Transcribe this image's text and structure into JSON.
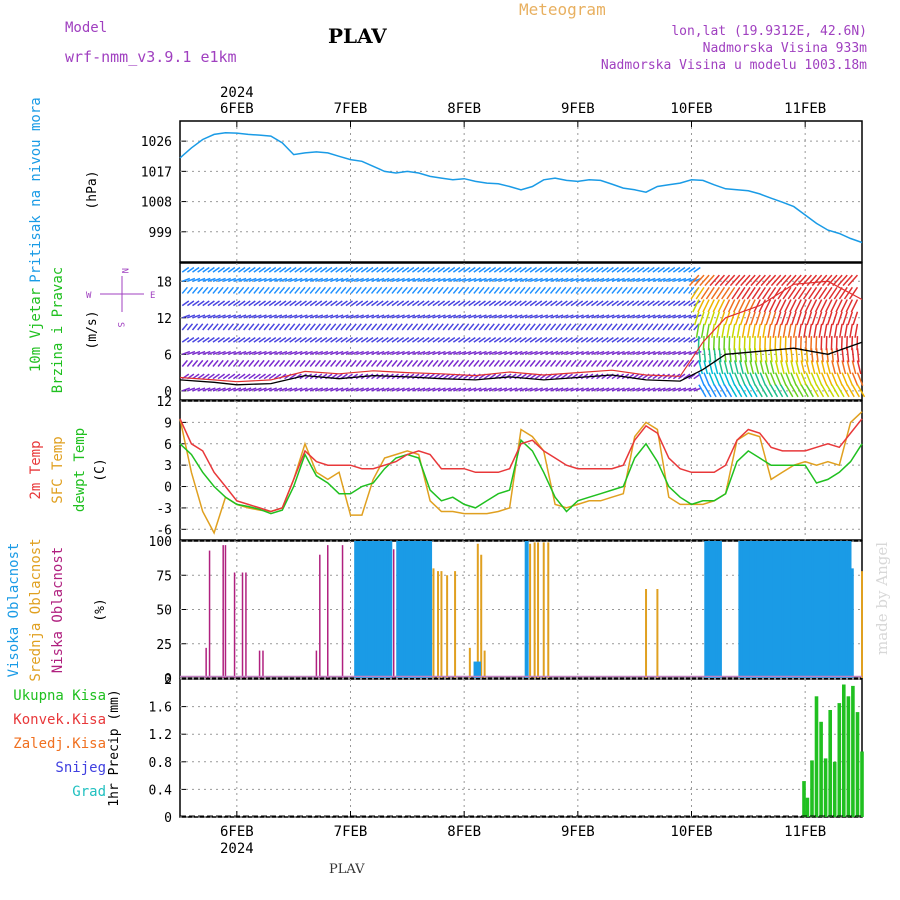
{
  "header": {
    "model_label": "Model",
    "model_name": "wrf-nmm_v3.9.1 e1km",
    "station": "PLAV",
    "meteogram": "Meteogram",
    "lonlat": "lon,lat (19.9312E, 42.6N)",
    "elevation": "Nadmorska Visina 933m",
    "model_elevation": "Nadmorska Visina u modelu 1003.18m",
    "footer_station": "PLAV",
    "watermark": "made by Angel"
  },
  "colors": {
    "pressure": "#1a9be6",
    "temp2m": "#e8383a",
    "sfc_temp": "#e0a020",
    "dewpt": "#20c020",
    "high_cloud": "#1a9be6",
    "mid_cloud": "#e0a020",
    "low_cloud": "#b0207f",
    "precip_total": "#20c020",
    "precip_conv": "#e8383a",
    "precip_frozen": "#f07020",
    "snow": "#4040e0",
    "hail": "#20c0c0",
    "label_purple": "#a040c0",
    "label_orange": "#e8b060"
  },
  "chart_data": [
    {
      "type": "line",
      "panel": "pressure",
      "ylabels": [
        "Pritisak na nivou mora",
        "(hPa)"
      ],
      "yticks": [
        "999",
        "1008",
        "1017",
        "1026"
      ],
      "ylim": [
        990,
        1032
      ],
      "x_unit": "days since 2024-02-06 00:00",
      "xlim": [
        -0.5,
        5.5
      ],
      "xticks": [
        "6FEB",
        "7FEB",
        "8FEB",
        "9FEB",
        "10FEB",
        "11FEB"
      ],
      "year_label": "2024",
      "grid": true,
      "series": [
        {
          "name": "Pritisak na nivou mora",
          "x": [
            -0.5,
            -0.4,
            -0.3,
            -0.2,
            -0.1,
            0,
            0.1,
            0.2,
            0.3,
            0.4,
            0.5,
            0.6,
            0.7,
            0.8,
            0.9,
            1.0,
            1.1,
            1.2,
            1.3,
            1.4,
            1.5,
            1.6,
            1.7,
            1.8,
            1.9,
            2.0,
            2.1,
            2.2,
            2.3,
            2.4,
            2.5,
            2.6,
            2.7,
            2.8,
            2.9,
            3.0,
            3.1,
            3.2,
            3.3,
            3.4,
            3.5,
            3.6,
            3.7,
            3.8,
            3.9,
            4.0,
            4.1,
            4.2,
            4.3,
            4.4,
            4.5,
            4.6,
            4.7,
            4.8,
            4.9,
            5.0,
            5.1,
            5.2,
            5.3,
            5.4,
            5.5
          ],
          "values": [
            1021,
            1024,
            1026.5,
            1028,
            1028.5,
            1028.4,
            1028,
            1027.8,
            1027.5,
            1025.5,
            1022,
            1022.5,
            1022.8,
            1022.5,
            1021.5,
            1020.5,
            1020,
            1018.5,
            1017,
            1016.5,
            1017,
            1016.5,
            1015.5,
            1015,
            1014.5,
            1014.8,
            1014,
            1013.5,
            1013.3,
            1012.5,
            1011.5,
            1012.5,
            1014.5,
            1015,
            1014.3,
            1014,
            1014.5,
            1014.3,
            1013.2,
            1012,
            1011.5,
            1010.8,
            1012.5,
            1013,
            1013.5,
            1014.5,
            1014.3,
            1013,
            1011.8,
            1011.5,
            1011.2,
            1010.3,
            1009,
            1007.8,
            1006.5,
            1004,
            1001.5,
            999.5,
            998.5,
            997,
            995.8
          ]
        }
      ]
    },
    {
      "type": "line",
      "panel": "wind",
      "ylabels": [
        "10m Vjetar",
        "Brzina i Pravac",
        "(m/s)"
      ],
      "compass": {
        "n": "N",
        "s": "S",
        "e": "E",
        "w": "W"
      },
      "yticks": [
        "0",
        "6",
        "12",
        "18"
      ],
      "ylim": [
        -1.5,
        21
      ],
      "x_unit": "days since 2024-02-06 00:00",
      "xlim": [
        -0.5,
        5.5
      ],
      "grid": true,
      "series": [
        {
          "name": "wind speed",
          "x": [
            -0.5,
            -0.2,
            0,
            0.3,
            0.6,
            0.9,
            1.2,
            1.5,
            1.8,
            2.1,
            2.4,
            2.7,
            3.0,
            3.3,
            3.6,
            3.9,
            4.1,
            4.3,
            4.6,
            4.9,
            5.2,
            5.5
          ],
          "values": [
            1.8,
            1.4,
            1.0,
            1.2,
            2.5,
            2.0,
            2.5,
            2.3,
            2.0,
            1.8,
            2.3,
            1.8,
            2.2,
            2.6,
            1.8,
            1.6,
            3.5,
            6.0,
            6.5,
            7.0,
            6.0,
            8.0
          ]
        },
        {
          "name": "gust",
          "x": [
            -0.5,
            -0.2,
            0,
            0.3,
            0.6,
            0.9,
            1.2,
            1.5,
            1.8,
            2.1,
            2.4,
            2.7,
            3.0,
            3.3,
            3.6,
            3.9,
            4.1,
            4.3,
            4.6,
            4.9,
            5.2,
            5.5
          ],
          "values": [
            2.2,
            1.8,
            1.5,
            1.8,
            3.2,
            2.8,
            3.3,
            3.0,
            2.8,
            2.5,
            3.1,
            2.6,
            3.0,
            3.4,
            2.6,
            2.4,
            8.0,
            12.0,
            14.0,
            17.5,
            18.0,
            15.0
          ]
        }
      ]
    },
    {
      "type": "line",
      "panel": "temperature",
      "ylabels": [
        "2m Temp",
        "SFC Temp",
        "dewpt Temp",
        "(C)"
      ],
      "yticks": [
        "-6",
        "-3",
        "0",
        "3",
        "6",
        "9",
        "12"
      ],
      "ylim": [
        -7.5,
        12
      ],
      "x_unit": "days since 2024-02-06 00:00",
      "xlim": [
        -0.5,
        5.5
      ],
      "grid": true,
      "series": [
        {
          "name": "2m Temp",
          "x": [
            -0.5,
            -0.4,
            -0.3,
            -0.2,
            -0.1,
            0,
            0.1,
            0.2,
            0.3,
            0.4,
            0.5,
            0.6,
            0.7,
            0.8,
            0.9,
            1.0,
            1.1,
            1.2,
            1.3,
            1.4,
            1.5,
            1.6,
            1.7,
            1.8,
            1.9,
            2.0,
            2.1,
            2.2,
            2.3,
            2.4,
            2.5,
            2.6,
            2.7,
            2.8,
            2.9,
            3.0,
            3.1,
            3.2,
            3.3,
            3.4,
            3.5,
            3.6,
            3.7,
            3.8,
            3.9,
            4.0,
            4.1,
            4.2,
            4.3,
            4.4,
            4.5,
            4.6,
            4.7,
            4.8,
            4.9,
            5.0,
            5.1,
            5.2,
            5.3,
            5.4,
            5.5
          ],
          "values": [
            9.5,
            6,
            5,
            2,
            0,
            -2,
            -2.5,
            -3,
            -3.5,
            -3,
            1,
            5,
            3.5,
            3,
            3,
            3,
            2.5,
            2.5,
            3,
            3.5,
            4.5,
            5,
            4.5,
            2.5,
            2.5,
            2.5,
            2,
            2,
            2,
            2.5,
            6,
            6.5,
            5,
            4,
            3,
            2.5,
            2.5,
            2.5,
            2.5,
            3,
            6.5,
            8.5,
            7.5,
            4,
            2.5,
            2,
            2,
            2,
            3,
            6.5,
            8,
            7.5,
            5.5,
            5,
            5,
            5,
            5.5,
            6,
            5.5,
            7.5,
            9.5
          ]
        },
        {
          "name": "SFC Temp",
          "x": [
            -0.5,
            -0.4,
            -0.3,
            -0.2,
            -0.1,
            0,
            0.1,
            0.2,
            0.3,
            0.4,
            0.5,
            0.6,
            0.7,
            0.8,
            0.9,
            1.0,
            1.1,
            1.2,
            1.3,
            1.4,
            1.5,
            1.6,
            1.7,
            1.8,
            1.9,
            2.0,
            2.1,
            2.2,
            2.3,
            2.4,
            2.5,
            2.6,
            2.7,
            2.8,
            2.9,
            3.0,
            3.1,
            3.2,
            3.3,
            3.4,
            3.5,
            3.6,
            3.7,
            3.8,
            3.9,
            4.0,
            4.1,
            4.2,
            4.3,
            4.4,
            4.5,
            4.6,
            4.7,
            4.8,
            4.9,
            5.0,
            5.1,
            5.2,
            5.3,
            5.4,
            5.5
          ],
          "values": [
            9.5,
            2,
            -3.5,
            -6.5,
            -1.5,
            -2.5,
            -3,
            -3.3,
            -3.5,
            -3,
            1,
            6,
            2,
            1,
            2,
            -4,
            -4,
            1,
            4,
            4.5,
            5,
            4.5,
            -2,
            -3.5,
            -3.5,
            -3.8,
            -3.8,
            -3.8,
            -3.5,
            -3,
            8,
            7,
            5,
            -2.5,
            -3,
            -2.5,
            -2,
            -2,
            -1.5,
            -1,
            7,
            9,
            8,
            -1.5,
            -2.5,
            -2.5,
            -2.5,
            -2,
            -1,
            6.5,
            7.5,
            7,
            1,
            2,
            3,
            3.5,
            3,
            3.5,
            3,
            9,
            10.5
          ]
        },
        {
          "name": "dewpt Temp",
          "x": [
            -0.5,
            -0.4,
            -0.3,
            -0.2,
            -0.1,
            0,
            0.1,
            0.2,
            0.3,
            0.4,
            0.5,
            0.6,
            0.7,
            0.8,
            0.9,
            1.0,
            1.1,
            1.2,
            1.3,
            1.4,
            1.5,
            1.6,
            1.7,
            1.8,
            1.9,
            2.0,
            2.1,
            2.2,
            2.3,
            2.4,
            2.5,
            2.6,
            2.7,
            2.8,
            2.9,
            3.0,
            3.1,
            3.2,
            3.3,
            3.4,
            3.5,
            3.6,
            3.7,
            3.8,
            3.9,
            4.0,
            4.1,
            4.2,
            4.3,
            4.4,
            4.5,
            4.6,
            4.7,
            4.8,
            4.9,
            5.0,
            5.1,
            5.2,
            5.3,
            5.4,
            5.5
          ],
          "values": [
            6,
            4.5,
            2,
            0,
            -1.5,
            -2.5,
            -2.8,
            -3.2,
            -3.8,
            -3.3,
            0,
            4.5,
            1.5,
            0.5,
            -1,
            -1,
            0,
            0.5,
            2.5,
            4,
            4.5,
            4,
            -0.5,
            -2,
            -1.5,
            -2.5,
            -3,
            -2,
            -1,
            -0.5,
            6.5,
            5,
            2,
            -1.5,
            -3.5,
            -2,
            -1.5,
            -1,
            -0.5,
            0,
            4,
            6,
            3.5,
            0,
            -1.5,
            -2.5,
            -2,
            -2,
            -1,
            3.5,
            5,
            4,
            3,
            3,
            3,
            3,
            0.5,
            1,
            2,
            3.5,
            6
          ]
        }
      ]
    },
    {
      "type": "bar",
      "panel": "clouds",
      "ylabels": [
        "Visoka Oblacnost",
        "Srednja Oblacnost",
        "Niska Oblacnost",
        "(%)"
      ],
      "yticks": [
        "0",
        "25",
        "50",
        "75",
        "100"
      ],
      "ylim": [
        0,
        100
      ],
      "x_unit": "days since 2024-02-06 00:00",
      "xlim": [
        -0.5,
        5.5
      ],
      "grid": true,
      "series": [
        {
          "name": "Niska Oblacnost",
          "x": [
            -0.27,
            -0.24,
            -0.12,
            -0.1,
            -0.02,
            0.05,
            0.08,
            0.2,
            0.23,
            0.7,
            0.73,
            0.8,
            0.93,
            1.38,
            1.45,
            1.5,
            1.55,
            5.4
          ],
          "values": [
            22,
            93,
            97,
            97,
            77,
            77,
            77,
            20,
            20,
            20,
            90,
            97,
            97,
            94,
            95,
            97,
            97,
            45
          ]
        },
        {
          "name": "Srednja Oblacnost",
          "x": [
            1.73,
            1.77,
            1.8,
            1.85,
            1.92,
            2.05,
            2.12,
            2.15,
            2.18,
            2.58,
            2.62,
            2.65,
            2.7,
            2.74,
            3.6,
            3.7,
            4.65,
            4.7,
            5.5
          ],
          "values": [
            80,
            78,
            78,
            75,
            78,
            22,
            98,
            90,
            20,
            98,
            99,
            99,
            99,
            99,
            65,
            65,
            97,
            97,
            78
          ]
        },
        {
          "name": "Visoka Oblacnost",
          "x": [
            1.05,
            1.07,
            1.09,
            1.11,
            1.13,
            1.15,
            1.17,
            1.19,
            1.21,
            1.23,
            1.25,
            1.27,
            1.29,
            1.31,
            1.33,
            1.35,
            1.42,
            1.44,
            1.46,
            1.48,
            1.5,
            1.52,
            1.54,
            1.56,
            1.58,
            1.6,
            1.62,
            1.64,
            1.66,
            1.68,
            1.7,
            2.1,
            2.13,
            2.55,
            4.13,
            4.15,
            4.17,
            4.19,
            4.21,
            4.23,
            4.25,
            4.43,
            4.45,
            4.47,
            4.49,
            4.51,
            4.53,
            4.55,
            4.57,
            4.59,
            4.61,
            4.63,
            4.65,
            4.67,
            4.69,
            4.71,
            4.73,
            4.75,
            4.77,
            4.79,
            4.81,
            4.83,
            4.85,
            4.87,
            4.89,
            4.91,
            4.93,
            4.95,
            4.97,
            4.99,
            5.01,
            5.03,
            5.05,
            5.07,
            5.09,
            5.11,
            5.13,
            5.15,
            5.17,
            5.19,
            5.21,
            5.23,
            5.25,
            5.27,
            5.29,
            5.31,
            5.33,
            5.35,
            5.37,
            5.39,
            5.41
          ],
          "values": [
            100,
            100,
            100,
            100,
            100,
            100,
            100,
            100,
            100,
            100,
            100,
            100,
            100,
            100,
            100,
            100,
            100,
            100,
            100,
            100,
            100,
            100,
            100,
            100,
            100,
            100,
            100,
            100,
            100,
            100,
            100,
            12,
            12,
            100,
            100,
            100,
            100,
            100,
            100,
            100,
            100,
            100,
            100,
            100,
            100,
            100,
            100,
            100,
            100,
            100,
            100,
            100,
            100,
            100,
            100,
            100,
            100,
            100,
            100,
            100,
            100,
            100,
            100,
            100,
            100,
            100,
            100,
            100,
            100,
            100,
            100,
            100,
            100,
            100,
            100,
            100,
            100,
            100,
            100,
            100,
            100,
            100,
            100,
            100,
            100,
            100,
            100,
            100,
            100,
            100,
            80
          ]
        }
      ]
    },
    {
      "type": "bar",
      "panel": "precip",
      "ylabels": [
        "1hr Precip (mm)"
      ],
      "legend": [
        "Ukupna Kisa",
        "Konvek.Kisa",
        "Zaledj.Kisa",
        "Snijeg",
        "Grad"
      ],
      "yticks": [
        "0",
        "0.4",
        "0.8",
        "1.2",
        "1.6",
        "2"
      ],
      "ylim": [
        0,
        2
      ],
      "x_unit": "days since 2024-02-06 00:00",
      "xlim": [
        -0.5,
        5.5
      ],
      "xticks": [
        "6FEB",
        "7FEB",
        "8FEB",
        "9FEB",
        "10FEB",
        "11FEB"
      ],
      "year_label": "2024",
      "grid": true,
      "series": [
        {
          "name": "Ukupna Kisa",
          "x": [
            4.99,
            5.02,
            5.06,
            5.1,
            5.14,
            5.18,
            5.22,
            5.26,
            5.3,
            5.34,
            5.38,
            5.42,
            5.46,
            5.5
          ],
          "values": [
            0.52,
            0.28,
            0.82,
            1.75,
            1.38,
            0.85,
            1.55,
            0.8,
            1.65,
            1.92,
            1.75,
            1.9,
            1.52,
            0.95
          ]
        }
      ]
    }
  ]
}
